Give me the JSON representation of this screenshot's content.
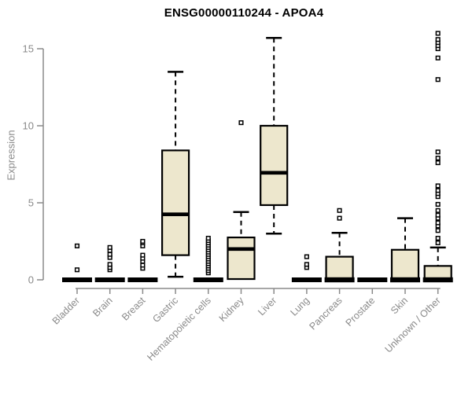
{
  "chart_data": {
    "type": "boxplot",
    "title": "ENSG00000110244 - APOA4",
    "xlabel": "",
    "ylabel": "Expression",
    "yticks": [
      0,
      5,
      10,
      15
    ],
    "ylim": [
      -0.4,
      16.6
    ],
    "grid": false,
    "legend": "none",
    "categories": [
      "Bladder",
      "Brain",
      "Breast",
      "Gastric",
      "Hematopoietic cells",
      "Kidney",
      "Liver",
      "Lung",
      "Pancreas",
      "Prostate",
      "Skin",
      "Unknown / Other"
    ],
    "series": [
      {
        "category": "Bladder",
        "low": 0,
        "q1": 0,
        "median": 0,
        "q3": 0,
        "high": 0,
        "outliers": [
          0.65,
          2.2
        ]
      },
      {
        "category": "Brain",
        "low": 0,
        "q1": 0,
        "median": 0,
        "q3": 0,
        "high": 0,
        "outliers": [
          0.65,
          0.8,
          1.0,
          1.45,
          1.65,
          1.9,
          2.1
        ]
      },
      {
        "category": "Breast",
        "low": 0,
        "q1": 0,
        "median": 0,
        "q3": 0,
        "high": 0,
        "outliers": [
          0.75,
          0.95,
          1.2,
          1.4,
          1.6,
          2.2,
          2.4,
          2.5
        ]
      },
      {
        "category": "Gastric",
        "low": 0.2,
        "q1": 1.6,
        "median": 4.25,
        "q3": 8.4,
        "high": 13.5,
        "outliers": []
      },
      {
        "category": "Hematopoietic cells",
        "low": 0,
        "q1": 0,
        "median": 0,
        "q3": 0,
        "high": 0,
        "outliers": [
          0.45,
          0.6,
          0.75,
          0.9,
          1.05,
          1.2,
          1.35,
          1.5,
          1.65,
          1.8,
          1.95,
          2.1,
          2.25,
          2.4,
          2.55,
          2.7
        ]
      },
      {
        "category": "Kidney",
        "low": 0.05,
        "q1": 0.05,
        "median": 2.0,
        "q3": 2.75,
        "high": 4.4,
        "outliers": [
          10.2
        ]
      },
      {
        "category": "Liver",
        "low": 3.0,
        "q1": 4.85,
        "median": 6.95,
        "q3": 10.0,
        "high": 15.7,
        "outliers": []
      },
      {
        "category": "Lung",
        "low": 0,
        "q1": 0,
        "median": 0,
        "q3": 0,
        "high": 0,
        "outliers": [
          0.8,
          1.0,
          1.5
        ]
      },
      {
        "category": "Pancreas",
        "low": 0,
        "q1": 0,
        "median": 0,
        "q3": 1.5,
        "high": 3.05,
        "outliers": [
          4.0,
          4.5
        ]
      },
      {
        "category": "Prostate",
        "low": 0,
        "q1": 0,
        "median": 0,
        "q3": 0,
        "high": 0,
        "outliers": []
      },
      {
        "category": "Skin",
        "low": 0,
        "q1": 0,
        "median": 0,
        "q3": 1.95,
        "high": 4.0,
        "outliers": []
      },
      {
        "category": "Unknown / Other",
        "low": 0,
        "q1": 0,
        "median": 0,
        "q3": 0.9,
        "high": 2.1,
        "outliers": [
          2.4,
          2.7,
          3.2,
          3.5,
          3.7,
          4.0,
          4.2,
          4.5,
          4.9,
          5.4,
          5.6,
          5.8,
          6.1,
          7.6,
          7.9,
          8.3,
          13.0,
          14.4,
          15.0,
          15.2,
          15.4,
          15.6,
          16.0
        ]
      }
    ],
    "colors": {
      "box_fill": "#EDE7CD",
      "box_border": "#000000",
      "whisker": "#000000",
      "median": "#000000",
      "outlier_stroke": "#000000",
      "outlier_fill": "#ffffff",
      "axis": "#8a8a8a",
      "title": "#000000",
      "background": "#ffffff"
    }
  }
}
